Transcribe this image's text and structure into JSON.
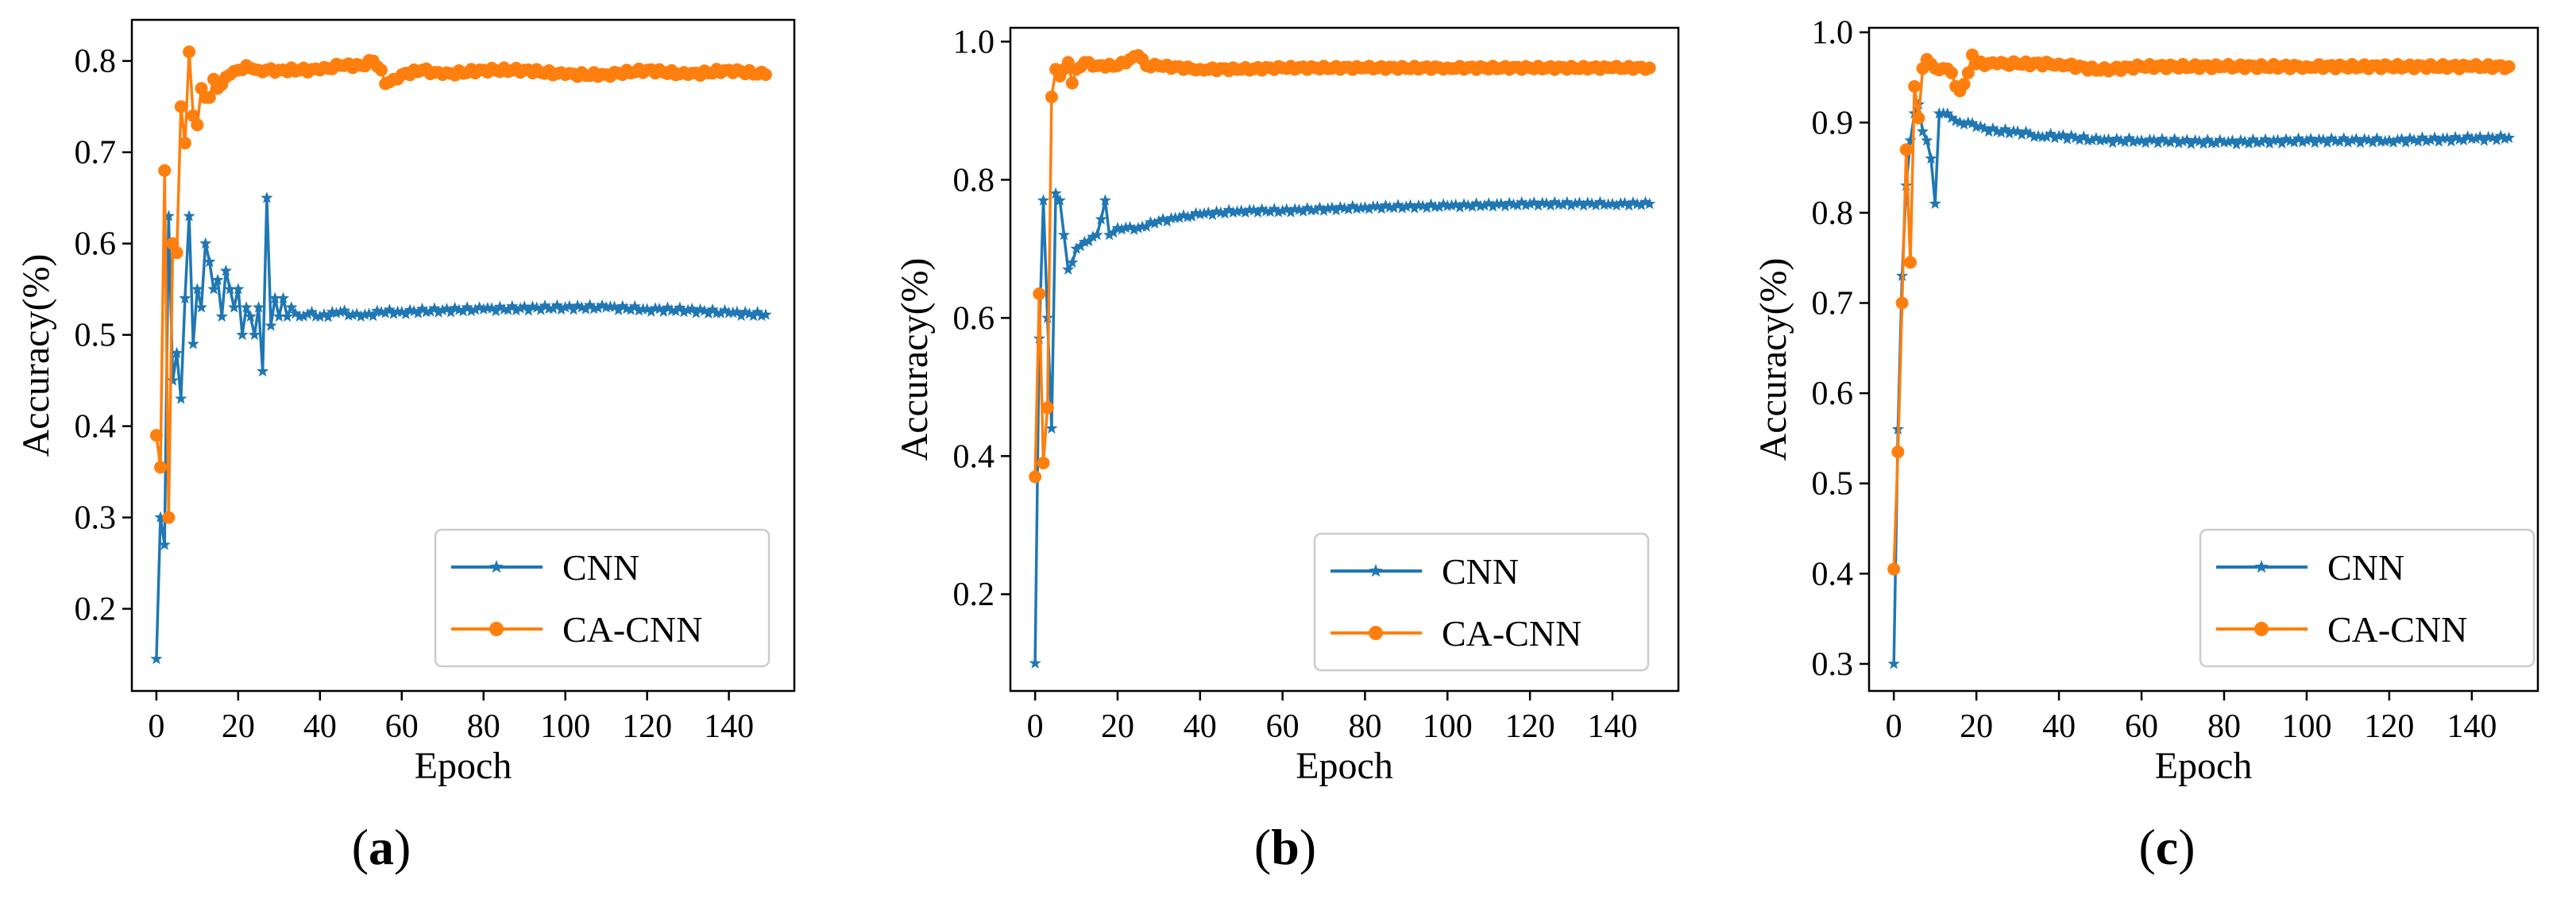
{
  "colors": {
    "cnn": "#1f77b4",
    "cacnn": "#ff7f0e"
  },
  "panel_labels": [
    {
      "open": "(",
      "letter": "a",
      "close": ")"
    },
    {
      "open": "(",
      "letter": "b",
      "close": ")"
    },
    {
      "open": "(",
      "letter": "c",
      "close": ")"
    }
  ],
  "chart_data": [
    {
      "type": "line",
      "title": "",
      "xlabel": "Epoch",
      "ylabel": "Accuracy(%)",
      "xlim": [
        -6,
        156
      ],
      "ylim": [
        0.11,
        0.845
      ],
      "xticks": [
        0,
        20,
        40,
        60,
        80,
        100,
        120,
        140
      ],
      "yticks": [
        0.2,
        0.3,
        0.4,
        0.5,
        0.6,
        0.7,
        0.8
      ],
      "ytick_labels": [
        "0.2",
        "0.3",
        "0.4",
        "0.5",
        "0.6",
        "0.7",
        "0.8"
      ],
      "legend": {
        "position": "bottom-right",
        "entries": [
          "CNN",
          "CA-CNN"
        ]
      },
      "series": [
        {
          "name": "CNN",
          "marker": "star",
          "keypoints": [
            [
              0,
              0.145
            ],
            [
              1,
              0.3
            ],
            [
              2,
              0.27
            ],
            [
              3,
              0.63
            ],
            [
              4,
              0.45
            ],
            [
              5,
              0.48
            ],
            [
              6,
              0.43
            ],
            [
              7,
              0.54
            ],
            [
              8,
              0.63
            ],
            [
              9,
              0.49
            ],
            [
              10,
              0.55
            ],
            [
              11,
              0.53
            ],
            [
              12,
              0.6
            ],
            [
              13,
              0.58
            ],
            [
              14,
              0.55
            ],
            [
              15,
              0.56
            ],
            [
              16,
              0.52
            ],
            [
              17,
              0.57
            ],
            [
              18,
              0.55
            ],
            [
              19,
              0.53
            ],
            [
              20,
              0.55
            ],
            [
              21,
              0.5
            ],
            [
              22,
              0.53
            ],
            [
              23,
              0.52
            ],
            [
              24,
              0.5
            ],
            [
              25,
              0.53
            ],
            [
              26,
              0.46
            ],
            [
              27,
              0.65
            ],
            [
              28,
              0.51
            ],
            [
              29,
              0.54
            ],
            [
              30,
              0.52
            ],
            [
              31,
              0.54
            ],
            [
              32,
              0.52
            ],
            [
              33,
              0.53
            ],
            [
              35,
              0.52
            ],
            [
              38,
              0.525
            ],
            [
              40,
              0.52
            ],
            [
              45,
              0.525
            ],
            [
              50,
              0.52
            ],
            [
              55,
              0.525
            ],
            [
              60,
              0.525
            ],
            [
              70,
              0.527
            ],
            [
              80,
              0.528
            ],
            [
              100,
              0.53
            ],
            [
              110,
              0.53
            ],
            [
              120,
              0.528
            ],
            [
              130,
              0.527
            ],
            [
              140,
              0.524
            ],
            [
              149,
              0.522
            ]
          ]
        },
        {
          "name": "CA-CNN",
          "marker": "circle",
          "keypoints": [
            [
              0,
              0.39
            ],
            [
              1,
              0.355
            ],
            [
              2,
              0.68
            ],
            [
              3,
              0.3
            ],
            [
              4,
              0.6
            ],
            [
              5,
              0.59
            ],
            [
              6,
              0.75
            ],
            [
              7,
              0.71
            ],
            [
              8,
              0.81
            ],
            [
              9,
              0.74
            ],
            [
              10,
              0.73
            ],
            [
              11,
              0.77
            ],
            [
              12,
              0.76
            ],
            [
              13,
              0.76
            ],
            [
              14,
              0.78
            ],
            [
              15,
              0.77
            ],
            [
              18,
              0.785
            ],
            [
              20,
              0.79
            ],
            [
              22,
              0.795
            ],
            [
              25,
              0.79
            ],
            [
              30,
              0.79
            ],
            [
              35,
              0.79
            ],
            [
              40,
              0.79
            ],
            [
              45,
              0.795
            ],
            [
              50,
              0.795
            ],
            [
              53,
              0.8
            ],
            [
              55,
              0.79
            ],
            [
              56,
              0.775
            ],
            [
              58,
              0.78
            ],
            [
              60,
              0.785
            ],
            [
              65,
              0.79
            ],
            [
              70,
              0.785
            ],
            [
              80,
              0.79
            ],
            [
              90,
              0.79
            ],
            [
              100,
              0.785
            ],
            [
              110,
              0.785
            ],
            [
              120,
              0.79
            ],
            [
              130,
              0.785
            ],
            [
              140,
              0.79
            ],
            [
              149,
              0.785
            ]
          ]
        }
      ]
    },
    {
      "type": "line",
      "title": "",
      "xlabel": "Epoch",
      "ylabel": "Accuracy(%)",
      "xlim": [
        -6,
        156
      ],
      "ylim": [
        0.06,
        1.02
      ],
      "xticks": [
        0,
        20,
        40,
        60,
        80,
        100,
        120,
        140
      ],
      "yticks": [
        0.2,
        0.4,
        0.6,
        0.8,
        1.0
      ],
      "ytick_labels": [
        "0.2",
        "0.4",
        "0.6",
        "0.8",
        "1.0"
      ],
      "legend": {
        "position": "bottom-right",
        "entries": [
          "CNN",
          "CA-CNN"
        ]
      },
      "series": [
        {
          "name": "CNN",
          "marker": "star",
          "keypoints": [
            [
              0,
              0.1
            ],
            [
              1,
              0.57
            ],
            [
              2,
              0.77
            ],
            [
              3,
              0.6
            ],
            [
              4,
              0.44
            ],
            [
              5,
              0.78
            ],
            [
              6,
              0.77
            ],
            [
              7,
              0.72
            ],
            [
              8,
              0.67
            ],
            [
              9,
              0.68
            ],
            [
              10,
              0.7
            ],
            [
              12,
              0.71
            ],
            [
              15,
              0.72
            ],
            [
              17,
              0.77
            ],
            [
              18,
              0.72
            ],
            [
              20,
              0.73
            ],
            [
              25,
              0.73
            ],
            [
              30,
              0.74
            ],
            [
              35,
              0.745
            ],
            [
              40,
              0.75
            ],
            [
              50,
              0.755
            ],
            [
              60,
              0.755
            ],
            [
              80,
              0.76
            ],
            [
              100,
              0.762
            ],
            [
              120,
              0.765
            ],
            [
              140,
              0.765
            ],
            [
              149,
              0.765
            ]
          ]
        },
        {
          "name": "CA-CNN",
          "marker": "circle",
          "keypoints": [
            [
              0,
              0.37
            ],
            [
              1,
              0.635
            ],
            [
              2,
              0.39
            ],
            [
              3,
              0.47
            ],
            [
              4,
              0.92
            ],
            [
              5,
              0.96
            ],
            [
              6,
              0.95
            ],
            [
              7,
              0.96
            ],
            [
              8,
              0.97
            ],
            [
              9,
              0.94
            ],
            [
              10,
              0.96
            ],
            [
              12,
              0.97
            ],
            [
              15,
              0.965
            ],
            [
              20,
              0.965
            ],
            [
              25,
              0.98
            ],
            [
              27,
              0.965
            ],
            [
              30,
              0.965
            ],
            [
              40,
              0.96
            ],
            [
              50,
              0.96
            ],
            [
              60,
              0.962
            ],
            [
              80,
              0.962
            ],
            [
              100,
              0.962
            ],
            [
              120,
              0.962
            ],
            [
              140,
              0.962
            ],
            [
              149,
              0.962
            ]
          ]
        }
      ]
    },
    {
      "type": "line",
      "title": "",
      "xlabel": "Epoch",
      "ylabel": "Accuracy(%)",
      "xlim": [
        -6,
        156
      ],
      "ylim": [
        0.27,
        1.005
      ],
      "xticks": [
        0,
        20,
        40,
        60,
        80,
        100,
        120,
        140
      ],
      "yticks": [
        0.3,
        0.4,
        0.5,
        0.6,
        0.7,
        0.8,
        0.9,
        1.0
      ],
      "ytick_labels": [
        "0.3",
        "0.4",
        "0.5",
        "0.6",
        "0.7",
        "0.8",
        "0.9",
        "1.0"
      ],
      "legend": {
        "position": "bottom-right",
        "entries": [
          "CNN",
          "CA-CNN"
        ]
      },
      "series": [
        {
          "name": "CNN",
          "marker": "star",
          "keypoints": [
            [
              0,
              0.3
            ],
            [
              1,
              0.56
            ],
            [
              2,
              0.73
            ],
            [
              3,
              0.83
            ],
            [
              4,
              0.88
            ],
            [
              5,
              0.91
            ],
            [
              6,
              0.92
            ],
            [
              7,
              0.89
            ],
            [
              8,
              0.88
            ],
            [
              9,
              0.86
            ],
            [
              10,
              0.81
            ],
            [
              11,
              0.91
            ],
            [
              12,
              0.91
            ],
            [
              14,
              0.905
            ],
            [
              16,
              0.9
            ],
            [
              18,
              0.9
            ],
            [
              20,
              0.895
            ],
            [
              25,
              0.89
            ],
            [
              30,
              0.89
            ],
            [
              35,
              0.885
            ],
            [
              40,
              0.885
            ],
            [
              50,
              0.88
            ],
            [
              60,
              0.88
            ],
            [
              80,
              0.878
            ],
            [
              100,
              0.88
            ],
            [
              120,
              0.88
            ],
            [
              140,
              0.882
            ],
            [
              149,
              0.883
            ]
          ]
        },
        {
          "name": "CA-CNN",
          "marker": "circle",
          "keypoints": [
            [
              0,
              0.405
            ],
            [
              1,
              0.535
            ],
            [
              2,
              0.7
            ],
            [
              3,
              0.87
            ],
            [
              4,
              0.745
            ],
            [
              5,
              0.94
            ],
            [
              6,
              0.905
            ],
            [
              7,
              0.96
            ],
            [
              8,
              0.97
            ],
            [
              9,
              0.965
            ],
            [
              10,
              0.96
            ],
            [
              12,
              0.96
            ],
            [
              14,
              0.955
            ],
            [
              15,
              0.94
            ],
            [
              16,
              0.935
            ],
            [
              18,
              0.955
            ],
            [
              19,
              0.975
            ],
            [
              20,
              0.965
            ],
            [
              25,
              0.965
            ],
            [
              30,
              0.965
            ],
            [
              40,
              0.965
            ],
            [
              50,
              0.958
            ],
            [
              60,
              0.962
            ],
            [
              80,
              0.962
            ],
            [
              100,
              0.962
            ],
            [
              120,
              0.962
            ],
            [
              140,
              0.962
            ],
            [
              149,
              0.962
            ]
          ]
        }
      ]
    }
  ]
}
